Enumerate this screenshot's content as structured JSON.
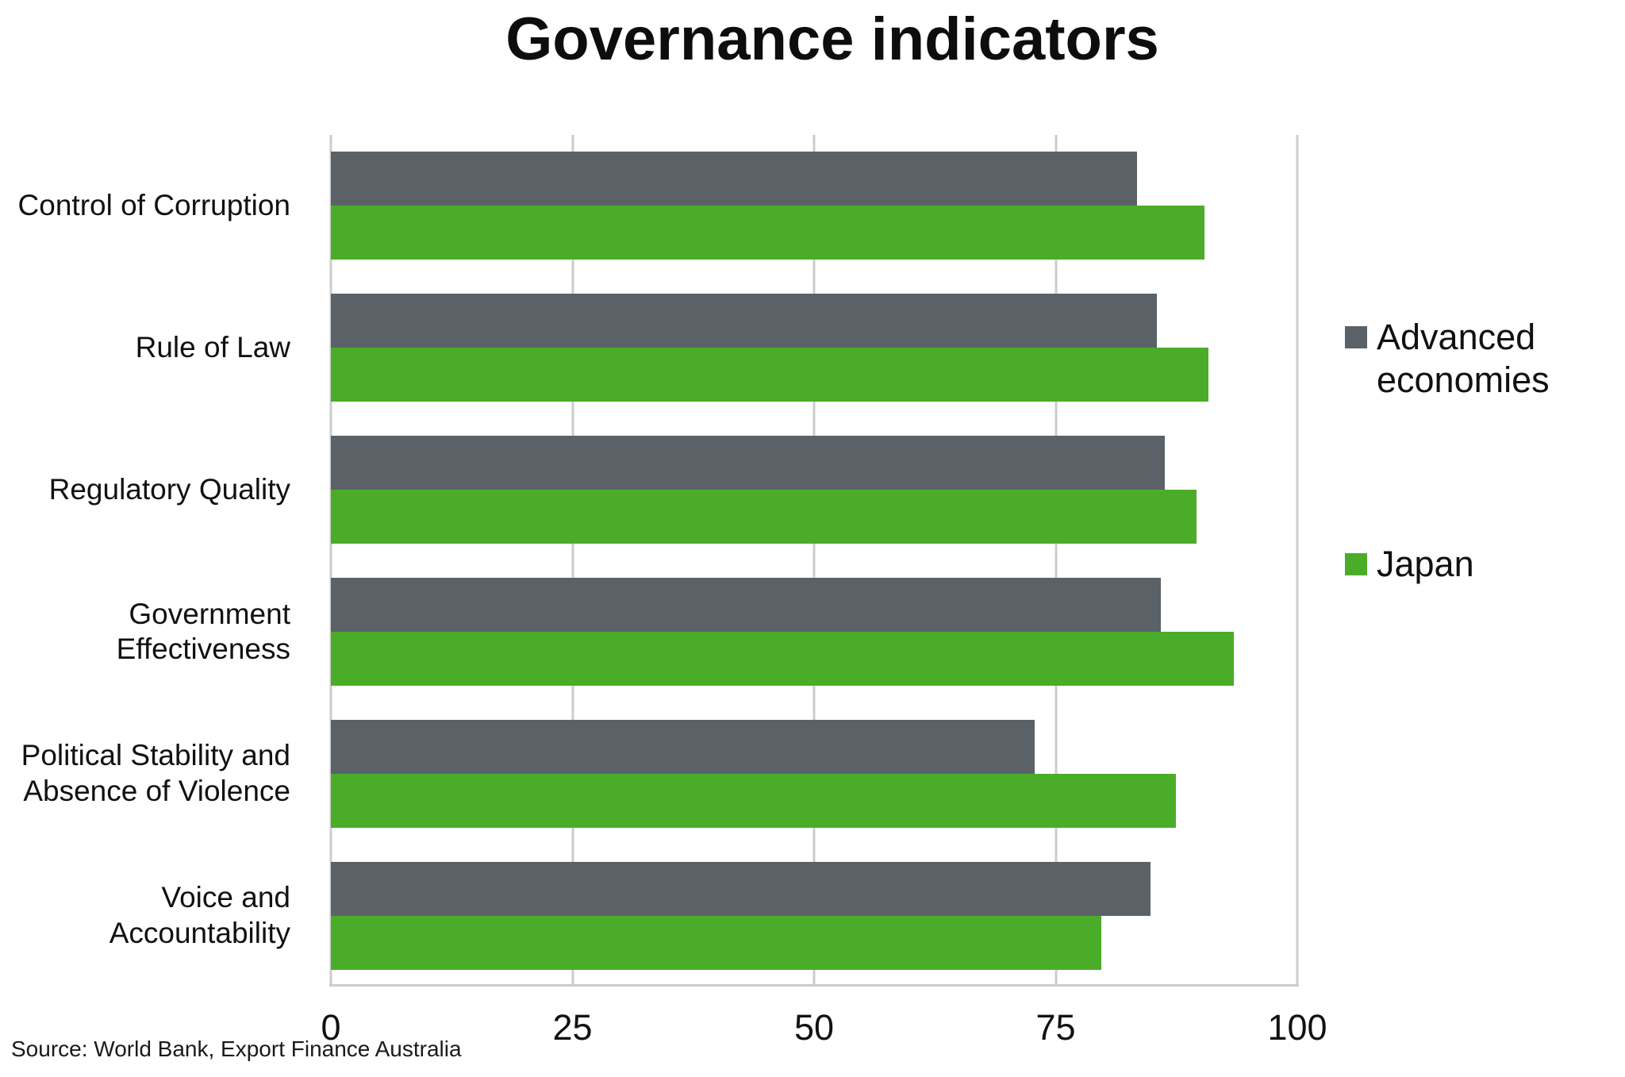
{
  "title": "Governance indicators",
  "source": "Source: World Bank, Export Finance Australia",
  "colors": {
    "advanced_economies": "#5a6268",
    "japan": "#4bac29",
    "gridline": "#cccccc",
    "text": "#111111"
  },
  "chart_data": {
    "type": "bar",
    "orientation": "horizontal",
    "title": "Governance indicators",
    "categories": [
      "Control of Corruption",
      "Rule of Law",
      "Regulatory Quality",
      "Government\nEffectiveness",
      "Political Stability and\nAbsence of Violence",
      "Voice and\nAccountability"
    ],
    "series": [
      {
        "name": "Advanced economies",
        "color": "#5a6268",
        "values": [
          83.4,
          85.5,
          86.3,
          85.9,
          72.8,
          84.8
        ]
      },
      {
        "name": "Japan",
        "color": "#4bac29",
        "values": [
          90.4,
          90.8,
          89.6,
          93.4,
          87.4,
          79.7
        ]
      }
    ],
    "xlim": [
      0,
      100
    ],
    "xticks": [
      0,
      25,
      50,
      75,
      100
    ],
    "grid": "vertical-lines-at-ticks",
    "legend_position": "right-outside",
    "xlabel": "",
    "ylabel": ""
  }
}
